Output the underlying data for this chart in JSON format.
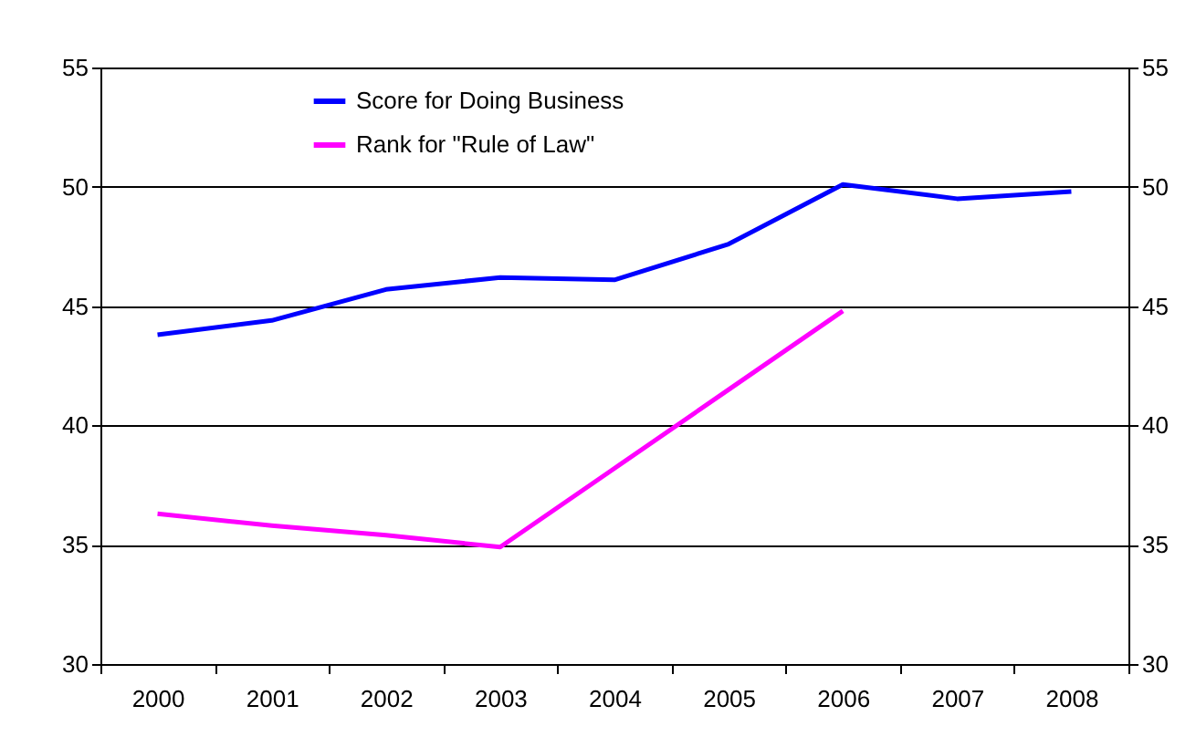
{
  "chart_data": {
    "type": "line",
    "categories": [
      "2000",
      "2001",
      "2002",
      "2003",
      "2004",
      "2005",
      "2006",
      "2007",
      "2008"
    ],
    "series": [
      {
        "name": "Score for Doing Business",
        "color": "#0000ff",
        "values": [
          43.8,
          44.4,
          45.7,
          46.2,
          46.1,
          47.6,
          50.1,
          49.5,
          49.8
        ]
      },
      {
        "name": "Rank for \"Rule of Law\"",
        "color": "#ff00ff",
        "values": [
          36.3,
          35.8,
          35.4,
          34.9,
          38.2,
          41.5,
          44.8,
          null,
          null
        ]
      }
    ],
    "ylim": [
      30,
      55
    ],
    "yticks": [
      30,
      35,
      40,
      45,
      50,
      55
    ],
    "y2lim": [
      30,
      55
    ],
    "y2ticks": [
      30,
      35,
      40,
      45,
      50,
      55
    ],
    "grid": "y",
    "legend": "top left",
    "line_style": "solid",
    "marker": "none"
  }
}
